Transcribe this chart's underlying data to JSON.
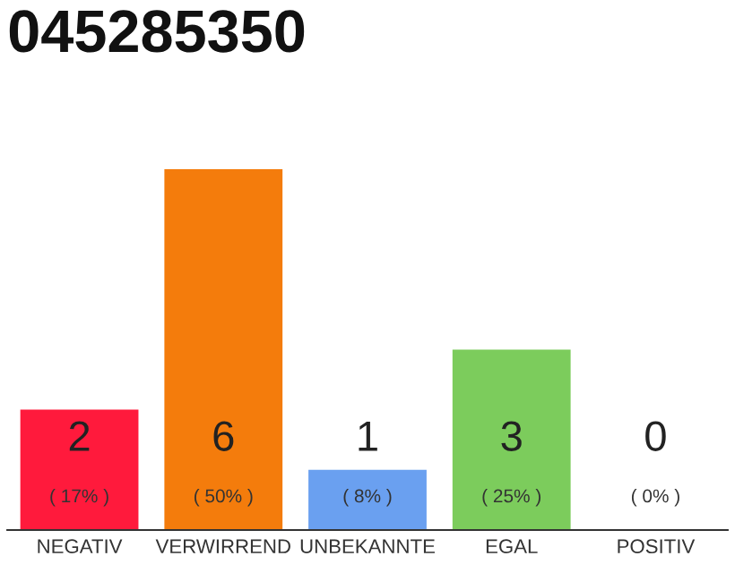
{
  "chart_data": {
    "type": "bar",
    "title": "045285350",
    "categories": [
      "NEGATIV",
      "VERWIRREND",
      "UNBEKANNTE",
      "EGAL",
      "POSITIV"
    ],
    "values": [
      2,
      6,
      1,
      3,
      0
    ],
    "colors": [
      "#ff1a3c",
      "#f47c0c",
      "#6aa0f0",
      "#7ccc5c",
      "#eeeeee"
    ],
    "value_labels": [
      "2\n( 17% )",
      "6\n( 50% )",
      "1\n( 8% )",
      "3\n( 25% )",
      "0\n( 0% )"
    ],
    "ylim": [
      0,
      6
    ],
    "tick_labels": "x",
    "grid": false,
    "legend": false
  }
}
